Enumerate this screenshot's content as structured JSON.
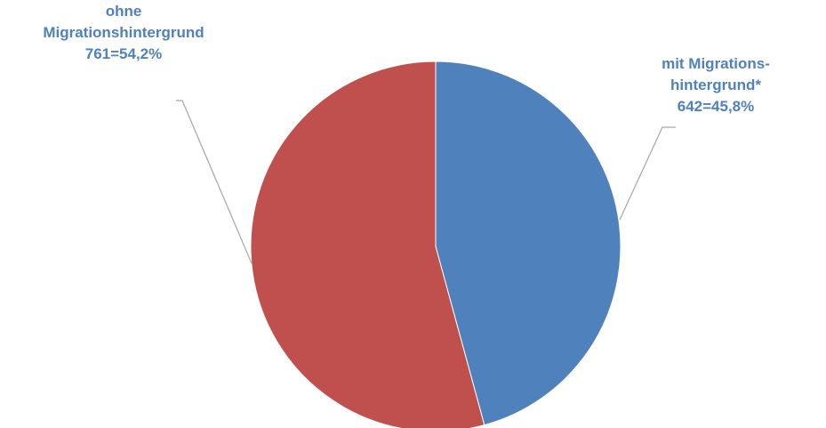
{
  "chart_data": {
    "type": "pie",
    "start_angle_deg": 0,
    "direction": "clockwise",
    "slices": [
      {
        "label_lines": [
          "mit Migrations-",
          "hintergrund*",
          "642=45,8%"
        ],
        "value": 642,
        "percent": 45.8,
        "color": "#4f81bd"
      },
      {
        "label_lines": [
          "ohne",
          "Migrationshintergrund",
          "761=54,2%"
        ],
        "value": 761,
        "percent": 54.2,
        "color": "#c0504d"
      }
    ],
    "label_color": "#4f81bd",
    "leader_line_color": "#a6a6a6"
  }
}
